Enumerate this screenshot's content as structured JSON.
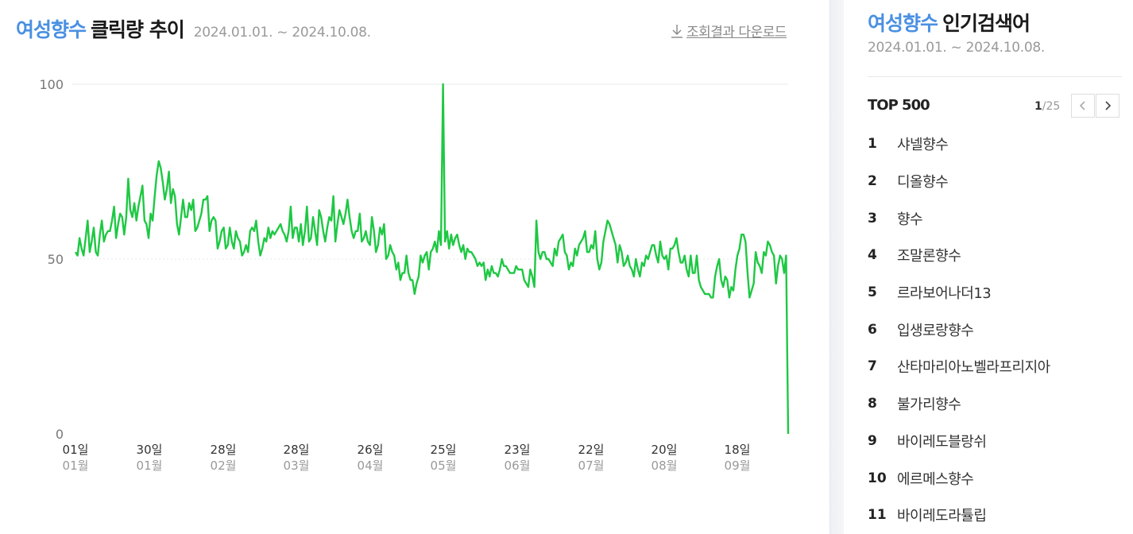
{
  "header": {
    "keyword": "여성향수",
    "title_suffix": "클릭량 추이",
    "date_range": "2024.01.01. ~ 2024.10.08.",
    "download_label": "조회결과 다운로드"
  },
  "sidebar": {
    "keyword": "여성향수",
    "title_suffix": "인기검색어",
    "date_range": "2024.01.01. ~ 2024.10.08.",
    "top_label": "TOP 500",
    "page_current": "1",
    "page_total": "/25",
    "ranks": [
      {
        "rank": "1",
        "keyword": "샤넬향수"
      },
      {
        "rank": "2",
        "keyword": "디올향수"
      },
      {
        "rank": "3",
        "keyword": "향수"
      },
      {
        "rank": "4",
        "keyword": "조말론향수"
      },
      {
        "rank": "5",
        "keyword": "르라보어나더13"
      },
      {
        "rank": "6",
        "keyword": "입생로랑향수"
      },
      {
        "rank": "7",
        "keyword": "산타마리아노벨라프리지아"
      },
      {
        "rank": "8",
        "keyword": "불가리향수"
      },
      {
        "rank": "9",
        "keyword": "바이레도블랑쉬"
      },
      {
        "rank": "10",
        "keyword": "에르메스향수"
      },
      {
        "rank": "11",
        "keyword": "바이레도라튤립"
      }
    ]
  },
  "chart_data": {
    "type": "line",
    "series": [
      {
        "color": "#1ec843",
        "values": [
          52,
          51,
          56,
          53,
          51,
          56,
          61,
          52,
          55,
          59,
          52,
          51,
          57,
          61,
          55,
          57,
          58,
          58,
          61,
          65,
          56,
          60,
          63,
          62,
          57,
          62,
          73,
          64,
          62,
          66,
          61,
          65,
          68,
          71,
          61,
          60,
          56,
          63,
          61,
          68,
          74,
          78,
          76,
          72,
          67,
          70,
          75,
          66,
          70,
          68,
          60,
          57,
          62,
          67,
          62,
          62,
          66,
          64,
          67,
          58,
          59,
          61,
          63,
          67,
          67,
          68,
          58,
          61,
          62,
          61,
          53,
          55,
          58,
          59,
          53,
          54,
          59,
          55,
          53,
          58,
          56,
          55,
          51,
          52,
          54,
          52,
          58,
          59,
          58,
          61,
          55,
          51,
          53,
          56,
          55,
          59,
          56,
          58,
          57,
          58,
          59,
          60,
          58,
          57,
          55,
          58,
          65,
          56,
          59,
          59,
          55,
          60,
          54,
          58,
          65,
          55,
          56,
          62,
          58,
          54,
          64,
          62,
          58,
          55,
          59,
          62,
          61,
          68,
          55,
          60,
          64,
          62,
          60,
          63,
          67,
          62,
          58,
          56,
          58,
          58,
          63,
          55,
          56,
          58,
          55,
          54,
          62,
          58,
          52,
          54,
          59,
          57,
          60,
          50,
          51,
          54,
          52,
          51,
          47,
          49,
          44,
          46,
          46,
          51,
          46,
          44,
          44,
          40,
          43,
          45,
          51,
          49,
          51,
          52,
          47,
          52,
          53,
          55,
          52,
          58,
          54,
          100,
          55,
          58,
          53,
          57,
          54,
          56,
          57,
          54,
          52,
          54,
          50,
          53,
          52,
          52,
          51,
          50,
          48,
          49,
          48,
          49,
          44,
          47,
          45,
          48,
          46,
          46,
          45,
          47,
          50,
          48,
          48,
          47,
          46,
          46,
          46,
          48,
          47,
          47,
          47,
          44,
          43,
          42,
          47,
          45,
          42,
          61,
          52,
          50,
          52,
          52,
          50,
          50,
          49,
          48,
          53,
          51,
          55,
          56,
          57,
          52,
          51,
          47,
          49,
          48,
          53,
          51,
          54,
          55,
          56,
          58,
          52,
          52,
          54,
          53,
          58,
          50,
          47,
          49,
          55,
          58,
          61,
          60,
          58,
          56,
          54,
          49,
          54,
          52,
          48,
          49,
          51,
          48,
          47,
          45,
          50,
          47,
          45,
          49,
          48,
          51,
          50,
          52,
          54,
          54,
          51,
          49,
          55,
          51,
          50,
          51,
          47,
          53,
          53,
          54,
          56,
          52,
          49,
          49,
          51,
          47,
          45,
          51,
          46,
          46,
          51,
          44,
          42,
          41,
          40,
          40,
          40,
          39,
          39,
          45,
          48,
          50,
          44,
          42,
          45,
          44,
          39,
          42,
          41,
          47,
          51,
          53,
          57,
          57,
          55,
          46,
          39,
          41,
          43,
          52,
          49,
          48,
          46,
          52,
          51,
          55,
          54,
          52,
          51,
          43,
          48,
          51,
          50,
          46,
          51,
          0
        ]
      }
    ],
    "ylim": [
      0,
      100
    ],
    "yticks": [
      0,
      50,
      100
    ],
    "xticks": [
      {
        "day": "01일",
        "month": "01월"
      },
      {
        "day": "30일",
        "month": "01월"
      },
      {
        "day": "28일",
        "month": "02월"
      },
      {
        "day": "28일",
        "month": "03월"
      },
      {
        "day": "26일",
        "month": "04월"
      },
      {
        "day": "25일",
        "month": "05월"
      },
      {
        "day": "23일",
        "month": "06월"
      },
      {
        "day": "22일",
        "month": "07월"
      },
      {
        "day": "20일",
        "month": "08월"
      },
      {
        "day": "18일",
        "month": "09월"
      }
    ],
    "grid": true
  }
}
